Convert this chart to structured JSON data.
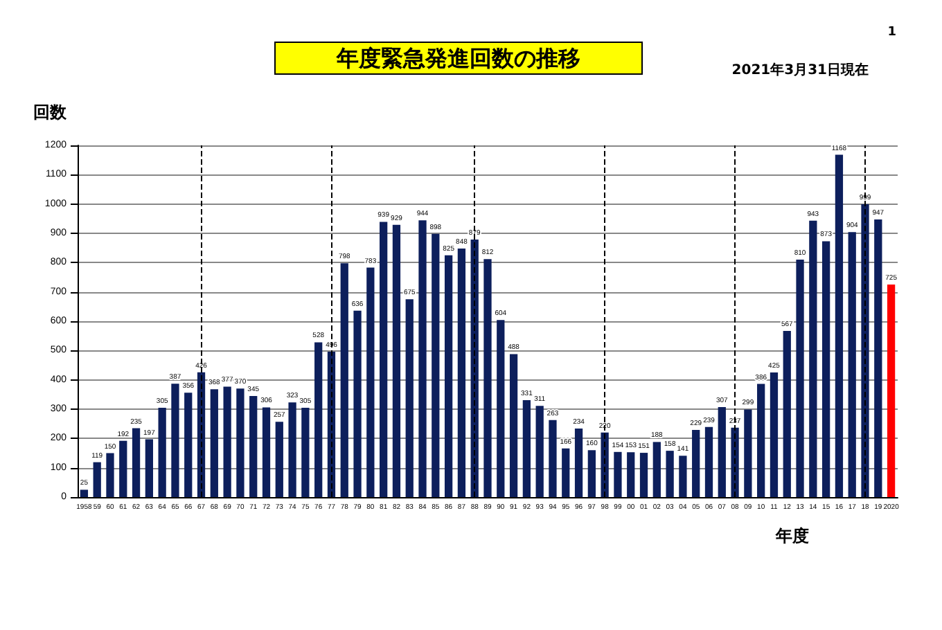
{
  "chart_data": {
    "type": "bar",
    "title": "年度緊急発進回数の推移",
    "xlabel": "年度",
    "ylabel": "回数",
    "annotations": [
      "2021年3月31日現在",
      "1"
    ],
    "categories": [
      "1958",
      "59",
      "60",
      "61",
      "62",
      "63",
      "64",
      "65",
      "66",
      "67",
      "68",
      "69",
      "70",
      "71",
      "72",
      "73",
      "74",
      "75",
      "76",
      "77",
      "78",
      "79",
      "80",
      "81",
      "82",
      "83",
      "84",
      "85",
      "86",
      "87",
      "88",
      "89",
      "90",
      "91",
      "92",
      "93",
      "94",
      "95",
      "96",
      "97",
      "98",
      "99",
      "00",
      "01",
      "02",
      "03",
      "04",
      "05",
      "06",
      "07",
      "08",
      "09",
      "10",
      "11",
      "12",
      "13",
      "14",
      "15",
      "16",
      "17",
      "18",
      "19",
      "2020"
    ],
    "values": [
      25,
      119,
      150,
      192,
      235,
      197,
      305,
      387,
      356,
      426,
      368,
      377,
      370,
      345,
      306,
      257,
      323,
      305,
      528,
      496,
      798,
      636,
      783,
      939,
      929,
      675,
      944,
      898,
      825,
      848,
      879,
      812,
      604,
      488,
      331,
      311,
      263,
      166,
      234,
      160,
      220,
      154,
      153,
      151,
      188,
      158,
      141,
      229,
      239,
      307,
      237,
      299,
      386,
      425,
      567,
      810,
      943,
      873,
      1168,
      904,
      999,
      947,
      725
    ],
    "colors": [
      "#0d1f5c",
      "#0d1f5c",
      "#0d1f5c",
      "#0d1f5c",
      "#0d1f5c",
      "#0d1f5c",
      "#0d1f5c",
      "#0d1f5c",
      "#0d1f5c",
      "#0d1f5c",
      "#0d1f5c",
      "#0d1f5c",
      "#0d1f5c",
      "#0d1f5c",
      "#0d1f5c",
      "#0d1f5c",
      "#0d1f5c",
      "#0d1f5c",
      "#0d1f5c",
      "#0d1f5c",
      "#0d1f5c",
      "#0d1f5c",
      "#0d1f5c",
      "#0d1f5c",
      "#0d1f5c",
      "#0d1f5c",
      "#0d1f5c",
      "#0d1f5c",
      "#0d1f5c",
      "#0d1f5c",
      "#0d1f5c",
      "#0d1f5c",
      "#0d1f5c",
      "#0d1f5c",
      "#0d1f5c",
      "#0d1f5c",
      "#0d1f5c",
      "#0d1f5c",
      "#0d1f5c",
      "#0d1f5c",
      "#0d1f5c",
      "#0d1f5c",
      "#0d1f5c",
      "#0d1f5c",
      "#0d1f5c",
      "#0d1f5c",
      "#0d1f5c",
      "#0d1f5c",
      "#0d1f5c",
      "#0d1f5c",
      "#0d1f5c",
      "#0d1f5c",
      "#0d1f5c",
      "#0d1f5c",
      "#0d1f5c",
      "#0d1f5c",
      "#0d1f5c",
      "#0d1f5c",
      "#0d1f5c",
      "#0d1f5c",
      "#0d1f5c",
      "#0d1f5c",
      "#ff0000"
    ],
    "ylim": [
      0,
      1200
    ],
    "yticks": [
      0,
      100,
      200,
      300,
      400,
      500,
      600,
      700,
      800,
      900,
      1000,
      1100,
      1200
    ],
    "grid": "y",
    "data_labels": true,
    "ref_lines": [
      {
        "axis": "x",
        "value": "67",
        "line_style": "dashed"
      },
      {
        "axis": "x",
        "value": "77",
        "line_style": "dashed"
      },
      {
        "axis": "x",
        "value": "88",
        "line_style": "dashed"
      },
      {
        "axis": "x",
        "value": "98",
        "line_style": "dashed"
      },
      {
        "axis": "x",
        "value": "08",
        "line_style": "dashed"
      },
      {
        "axis": "x",
        "value": "18",
        "line_style": "dashed"
      }
    ]
  }
}
